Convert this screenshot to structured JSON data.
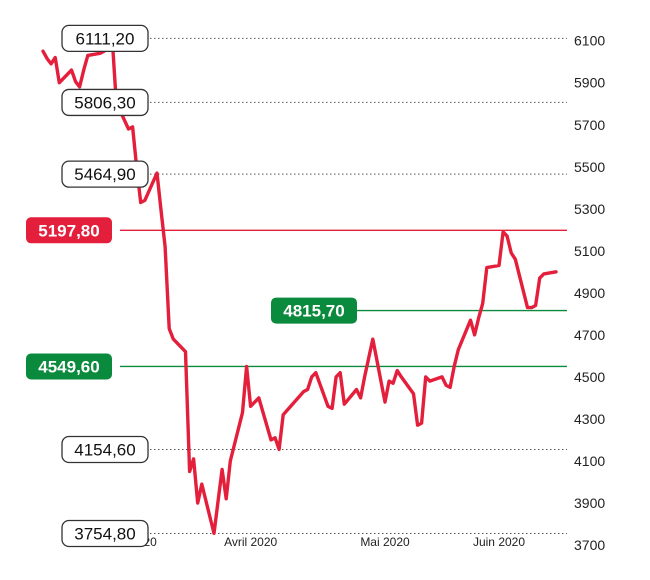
{
  "chart_data": {
    "type": "line",
    "title": "",
    "xlabel": "",
    "ylabel": "",
    "ylim": [
      3700,
      6170
    ],
    "y_ticks": [
      6100,
      5900,
      5700,
      5500,
      5300,
      5100,
      4900,
      4700,
      4500,
      4300,
      4100,
      3900,
      3700
    ],
    "x_ticks": [
      {
        "date": "2020-03-02",
        "label": "Mars 2020"
      },
      {
        "date": "2020-04-01",
        "label": "Avril 2020"
      },
      {
        "date": "2020-05-04",
        "label": "Mai 2020"
      },
      {
        "date": "2020-06-01",
        "label": "Juin 2020"
      }
    ],
    "grid": "dotted horizontal at annotated levels",
    "colors": {
      "series": "#e41f3c",
      "red_level": "#e41f3c",
      "green_level": "#0a8a3c",
      "gray_level": "#777777"
    },
    "series": [
      {
        "name": "",
        "points": [
          [
            "2020-02-10",
            6050
          ],
          [
            "2020-02-11",
            6015
          ],
          [
            "2020-02-12",
            5990
          ],
          [
            "2020-02-13",
            6020
          ],
          [
            "2020-02-14",
            5900
          ],
          [
            "2020-02-17",
            5960
          ],
          [
            "2020-02-18",
            5905
          ],
          [
            "2020-02-19",
            5880
          ],
          [
            "2020-02-20",
            5960
          ],
          [
            "2020-02-21",
            6030
          ],
          [
            "2020-02-24",
            6040
          ],
          [
            "2020-02-25",
            6050
          ],
          [
            "2020-02-26",
            6070
          ],
          [
            "2020-02-27",
            6111
          ],
          [
            "2020-02-28",
            5806
          ],
          [
            "2020-03-02",
            5680
          ],
          [
            "2020-03-03",
            5690
          ],
          [
            "2020-03-04",
            5500
          ],
          [
            "2020-03-05",
            5330
          ],
          [
            "2020-03-06",
            5340
          ],
          [
            "2020-03-09",
            5470
          ],
          [
            "2020-03-10",
            5290
          ],
          [
            "2020-03-11",
            5120
          ],
          [
            "2020-03-12",
            4730
          ],
          [
            "2020-03-13",
            4680
          ],
          [
            "2020-03-16",
            4620
          ],
          [
            "2020-03-17",
            4050
          ],
          [
            "2020-03-18",
            4110
          ],
          [
            "2020-03-19",
            3900
          ],
          [
            "2020-03-20",
            3990
          ],
          [
            "2020-03-23",
            3755
          ],
          [
            "2020-03-24",
            3910
          ],
          [
            "2020-03-25",
            4060
          ],
          [
            "2020-03-26",
            3920
          ],
          [
            "2020-03-27",
            4100
          ],
          [
            "2020-03-30",
            4330
          ],
          [
            "2020-03-31",
            4550
          ],
          [
            "2020-04-01",
            4360
          ],
          [
            "2020-04-02",
            4380
          ],
          [
            "2020-04-03",
            4400
          ],
          [
            "2020-04-06",
            4200
          ],
          [
            "2020-04-07",
            4210
          ],
          [
            "2020-04-08",
            4155
          ],
          [
            "2020-04-09",
            4320
          ],
          [
            "2020-04-14",
            4430
          ],
          [
            "2020-04-15",
            4440
          ],
          [
            "2020-04-16",
            4500
          ],
          [
            "2020-04-17",
            4520
          ],
          [
            "2020-04-20",
            4360
          ],
          [
            "2020-04-21",
            4350
          ],
          [
            "2020-04-22",
            4500
          ],
          [
            "2020-04-23",
            4520
          ],
          [
            "2020-04-24",
            4370
          ],
          [
            "2020-04-27",
            4440
          ],
          [
            "2020-04-28",
            4400
          ],
          [
            "2020-04-29",
            4500
          ],
          [
            "2020-04-30",
            4590
          ],
          [
            "2020-05-01",
            4680
          ],
          [
            "2020-05-04",
            4380
          ],
          [
            "2020-05-05",
            4480
          ],
          [
            "2020-05-06",
            4470
          ],
          [
            "2020-05-07",
            4530
          ],
          [
            "2020-05-08",
            4500
          ],
          [
            "2020-05-11",
            4420
          ],
          [
            "2020-05-12",
            4270
          ],
          [
            "2020-05-13",
            4280
          ],
          [
            "2020-05-14",
            4500
          ],
          [
            "2020-05-15",
            4480
          ],
          [
            "2020-05-18",
            4500
          ],
          [
            "2020-05-19",
            4460
          ],
          [
            "2020-05-20",
            4450
          ],
          [
            "2020-05-21",
            4550
          ],
          [
            "2020-05-22",
            4630
          ],
          [
            "2020-05-25",
            4770
          ],
          [
            "2020-05-26",
            4700
          ],
          [
            "2020-05-27",
            4780
          ],
          [
            "2020-05-28",
            4850
          ],
          [
            "2020-05-29",
            5020
          ],
          [
            "2020-06-01",
            5030
          ],
          [
            "2020-06-02",
            5190
          ],
          [
            "2020-06-03",
            5170
          ],
          [
            "2020-06-04",
            5090
          ],
          [
            "2020-06-05",
            5060
          ],
          [
            "2020-06-08",
            4830
          ],
          [
            "2020-06-09",
            4830
          ],
          [
            "2020-06-10",
            4840
          ],
          [
            "2020-06-11",
            4970
          ],
          [
            "2020-06-12",
            4990
          ],
          [
            "2020-06-15",
            5000
          ]
        ]
      }
    ],
    "levels": [
      {
        "value": 6111.2,
        "label": "6111,20",
        "style": "gray",
        "label_side": "left"
      },
      {
        "value": 5806.3,
        "label": "5806,30",
        "style": "gray",
        "label_side": "left"
      },
      {
        "value": 5464.9,
        "label": "5464,90",
        "style": "gray",
        "label_side": "left"
      },
      {
        "value": 5197.8,
        "label": "5197,80",
        "style": "red",
        "label_side": "left"
      },
      {
        "value": 4815.7,
        "label": "4815,70",
        "style": "green",
        "label_side": "mid"
      },
      {
        "value": 4549.6,
        "label": "4549,60",
        "style": "green",
        "label_side": "left"
      },
      {
        "value": 4154.6,
        "label": "4154,60",
        "style": "gray",
        "label_side": "left"
      },
      {
        "value": 3754.8,
        "label": "3754,80",
        "style": "gray",
        "label_side": "left"
      }
    ]
  }
}
